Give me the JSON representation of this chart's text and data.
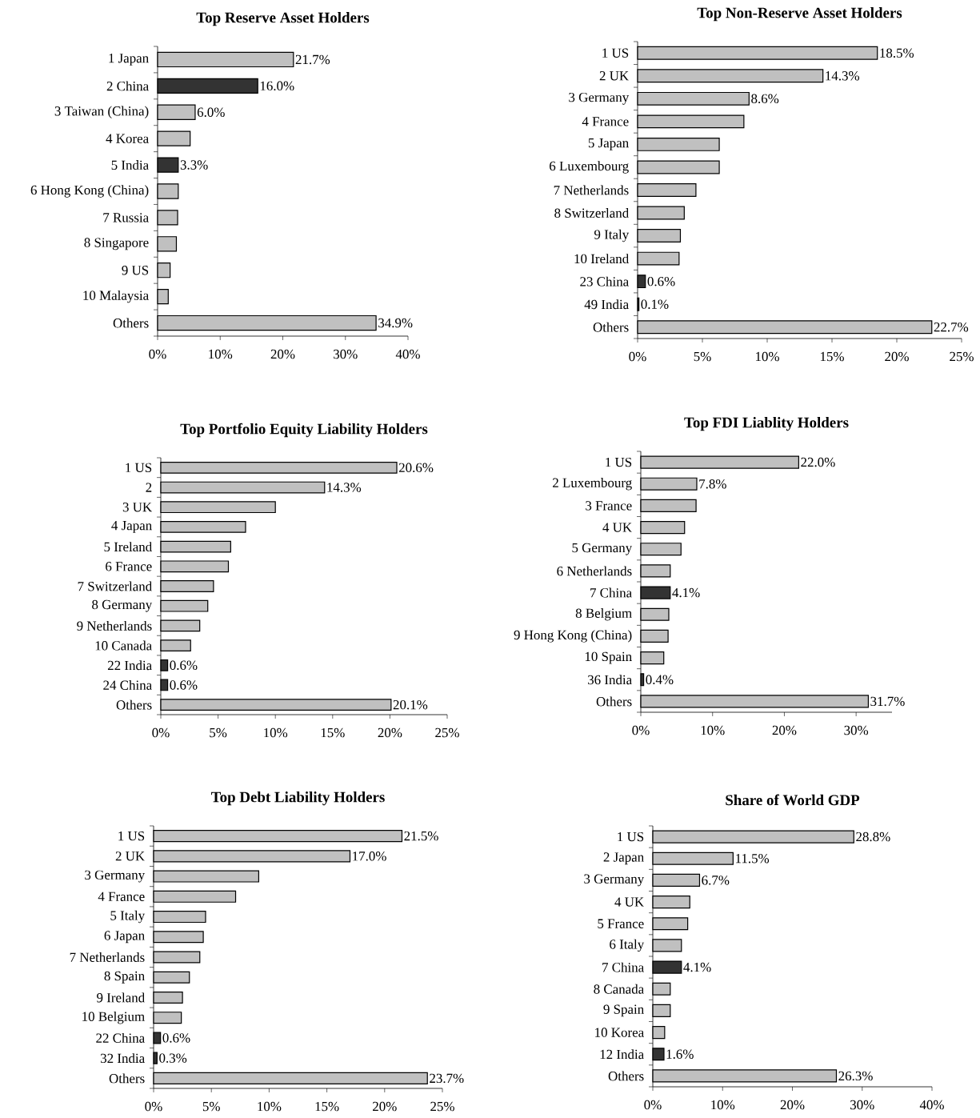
{
  "chart_data": [
    {
      "type": "bar",
      "orientation": "horizontal",
      "title": "Top Reserve Asset Holders",
      "categories": [
        "1 Japan",
        "2 China",
        "3 Taiwan (China)",
        "4 Korea",
        "5 India",
        "6 Hong Kong (China)",
        "7 Russia",
        "8 Singapore",
        "9 US",
        "10 Malaysia",
        "Others"
      ],
      "values": [
        21.7,
        16.0,
        6.0,
        5.2,
        3.3,
        3.3,
        3.2,
        3.0,
        2.0,
        1.7,
        34.9
      ],
      "colors": [
        "#c0c0c0",
        "#333333",
        "#c0c0c0",
        "#c0c0c0",
        "#333333",
        "#c0c0c0",
        "#c0c0c0",
        "#c0c0c0",
        "#c0c0c0",
        "#c0c0c0",
        "#c0c0c0"
      ],
      "value_labels": [
        "21.7%",
        "16.0%",
        "6.0%",
        null,
        "3.3%",
        null,
        null,
        null,
        null,
        null,
        "34.9%"
      ],
      "xlim": [
        0,
        40
      ],
      "xticks": [
        {
          "value": 0,
          "label": "0%"
        },
        {
          "value": 10,
          "label": "10%"
        },
        {
          "value": 20,
          "label": "20%"
        },
        {
          "value": 30,
          "label": "30%"
        },
        {
          "value": 40,
          "label": "40%"
        }
      ]
    },
    {
      "type": "bar",
      "orientation": "horizontal",
      "title": "Top Non-Reserve Asset Holders",
      "categories": [
        "1 US",
        "2 UK",
        "3 Germany",
        "4 France",
        "5 Japan",
        "6 Luxembourg",
        "7 Netherlands",
        "8 Switzerland",
        "9 Italy",
        "10 Ireland",
        "23 China",
        "49 India",
        "Others"
      ],
      "values": [
        18.5,
        14.3,
        8.6,
        8.2,
        6.3,
        6.3,
        4.5,
        3.6,
        3.3,
        3.2,
        0.6,
        0.1,
        22.7
      ],
      "colors": [
        "#c0c0c0",
        "#c0c0c0",
        "#c0c0c0",
        "#c0c0c0",
        "#c0c0c0",
        "#c0c0c0",
        "#c0c0c0",
        "#c0c0c0",
        "#c0c0c0",
        "#c0c0c0",
        "#333333",
        "#333333",
        "#c0c0c0"
      ],
      "value_labels": [
        "18.5%",
        "14.3%",
        "8.6%",
        null,
        null,
        null,
        null,
        null,
        null,
        null,
        "0.6%",
        "0.1%",
        "22.7%"
      ],
      "xlim": [
        0,
        25
      ],
      "xticks": [
        {
          "value": 0,
          "label": "0%"
        },
        {
          "value": 5,
          "label": "5%"
        },
        {
          "value": 10,
          "label": "10%"
        },
        {
          "value": 15,
          "label": "15%"
        },
        {
          "value": 20,
          "label": "20%"
        },
        {
          "value": 25,
          "label": "25%"
        }
      ]
    },
    {
      "type": "bar",
      "orientation": "horizontal",
      "title": "Top Portfolio Equity Liability Holders",
      "categories": [
        "1 US",
        "2",
        "3 UK",
        "4 Japan",
        "5 Ireland",
        "6 France",
        "7 Switzerland",
        "8 Germany",
        "9 Netherlands",
        "10 Canada",
        "22 India",
        "24 China",
        "Others"
      ],
      "values": [
        20.6,
        14.3,
        10.0,
        7.4,
        6.1,
        5.9,
        4.6,
        4.1,
        3.4,
        2.6,
        0.6,
        0.6,
        20.1
      ],
      "colors": [
        "#c0c0c0",
        "#c0c0c0",
        "#c0c0c0",
        "#c0c0c0",
        "#c0c0c0",
        "#c0c0c0",
        "#c0c0c0",
        "#c0c0c0",
        "#c0c0c0",
        "#c0c0c0",
        "#333333",
        "#333333",
        "#c0c0c0"
      ],
      "value_labels": [
        "20.6%",
        "14.3%",
        null,
        null,
        null,
        null,
        null,
        null,
        null,
        null,
        "0.6%",
        "0.6%",
        "20.1%"
      ],
      "xlim": [
        0,
        25
      ],
      "xticks": [
        {
          "value": 0,
          "label": "0%"
        },
        {
          "value": 5,
          "label": "5%"
        },
        {
          "value": 10,
          "label": "10%"
        },
        {
          "value": 15,
          "label": "15%"
        },
        {
          "value": 20,
          "label": "20%"
        },
        {
          "value": 25,
          "label": "25%"
        }
      ]
    },
    {
      "type": "bar",
      "orientation": "horizontal",
      "title": "Top FDI Liablity Holders",
      "categories": [
        "1 US",
        "2 Luxembourg",
        "3 France",
        "4 UK",
        "5 Germany",
        "6 Netherlands",
        "7 China",
        "8 Belgium",
        "9 Hong Kong (China)",
        "10 Spain",
        "36 India",
        "Others"
      ],
      "values": [
        22.0,
        7.8,
        7.7,
        6.1,
        5.6,
        4.1,
        4.1,
        3.9,
        3.8,
        3.2,
        0.4,
        31.7
      ],
      "colors": [
        "#c0c0c0",
        "#c0c0c0",
        "#c0c0c0",
        "#c0c0c0",
        "#c0c0c0",
        "#c0c0c0",
        "#333333",
        "#c0c0c0",
        "#c0c0c0",
        "#c0c0c0",
        "#333333",
        "#c0c0c0"
      ],
      "value_labels": [
        "22.0%",
        "7.8%",
        null,
        null,
        null,
        null,
        "4.1%",
        null,
        null,
        null,
        "0.4%",
        "31.7%"
      ],
      "xlim": [
        0,
        35
      ],
      "xticks": [
        {
          "value": 0,
          "label": "0%"
        },
        {
          "value": 10,
          "label": "10%"
        },
        {
          "value": 20,
          "label": "20%"
        },
        {
          "value": 30,
          "label": "30%"
        }
      ]
    },
    {
      "type": "bar",
      "orientation": "horizontal",
      "title": "Top Debt Liability Holders",
      "categories": [
        "1 US",
        "2 UK",
        "3 Germany",
        "4 France",
        "5 Italy",
        "6 Japan",
        "7 Netherlands",
        "8 Spain",
        "9 Ireland",
        "10 Belgium",
        "22 China",
        "32 India",
        "Others"
      ],
      "values": [
        21.5,
        17.0,
        9.1,
        7.1,
        4.5,
        4.3,
        4.0,
        3.1,
        2.5,
        2.4,
        0.6,
        0.3,
        23.7
      ],
      "colors": [
        "#c0c0c0",
        "#c0c0c0",
        "#c0c0c0",
        "#c0c0c0",
        "#c0c0c0",
        "#c0c0c0",
        "#c0c0c0",
        "#c0c0c0",
        "#c0c0c0",
        "#c0c0c0",
        "#333333",
        "#333333",
        "#c0c0c0"
      ],
      "value_labels": [
        "21.5%",
        "17.0%",
        null,
        null,
        null,
        null,
        null,
        null,
        null,
        null,
        "0.6%",
        "0.3%",
        "23.7%"
      ],
      "xlim": [
        0,
        25
      ],
      "xticks": [
        {
          "value": 0,
          "label": "0%"
        },
        {
          "value": 5,
          "label": "5%"
        },
        {
          "value": 10,
          "label": "10%"
        },
        {
          "value": 15,
          "label": "15%"
        },
        {
          "value": 20,
          "label": "20%"
        },
        {
          "value": 25,
          "label": "25%"
        }
      ]
    },
    {
      "type": "bar",
      "orientation": "horizontal",
      "title": "Share of World GDP",
      "categories": [
        "1 US",
        "2 Japan",
        "3 Germany",
        "4 UK",
        "5 France",
        "6 Italy",
        "7 China",
        "8 Canada",
        "9 Spain",
        "10 Korea",
        "12 India",
        "Others"
      ],
      "values": [
        28.8,
        11.5,
        6.7,
        5.3,
        5.0,
        4.1,
        4.1,
        2.5,
        2.5,
        1.7,
        1.6,
        26.3
      ],
      "colors": [
        "#c0c0c0",
        "#c0c0c0",
        "#c0c0c0",
        "#c0c0c0",
        "#c0c0c0",
        "#c0c0c0",
        "#333333",
        "#c0c0c0",
        "#c0c0c0",
        "#c0c0c0",
        "#333333",
        "#c0c0c0"
      ],
      "value_labels": [
        "28.8%",
        "11.5%",
        "6.7%",
        null,
        null,
        null,
        "4.1%",
        null,
        null,
        null,
        "1.6%",
        "26.3%"
      ],
      "xlim": [
        0,
        40
      ],
      "xticks": [
        {
          "value": 0,
          "label": "0%"
        },
        {
          "value": 10,
          "label": "10%"
        },
        {
          "value": 20,
          "label": "20%"
        },
        {
          "value": 30,
          "label": "30%"
        },
        {
          "value": 40,
          "label": "40%"
        }
      ]
    }
  ]
}
